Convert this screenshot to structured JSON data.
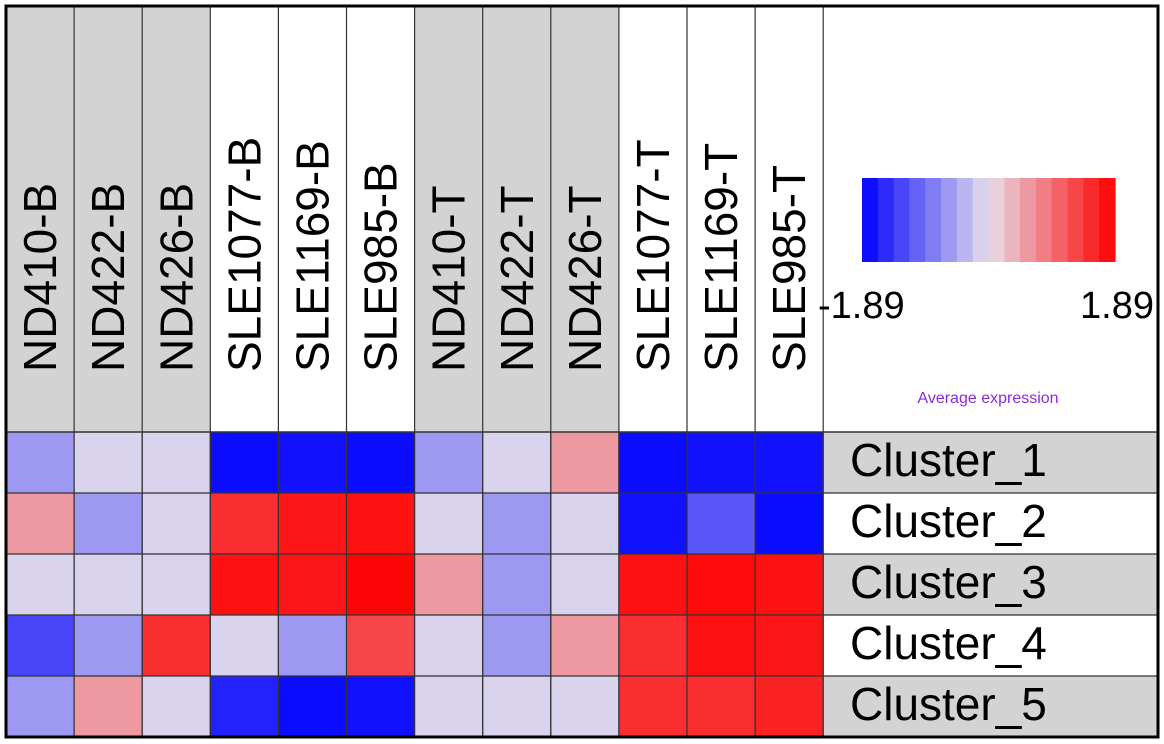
{
  "chart_data": {
    "type": "heatmap",
    "columns": [
      "ND410-B",
      "ND422-B",
      "ND426-B",
      "SLE1077-B",
      "SLE1169-B",
      "SLE985-B",
      "ND410-T",
      "ND422-T",
      "ND426-T",
      "SLE1077-T",
      "SLE1169-T",
      "SLE985-T"
    ],
    "column_groups": [
      "gray",
      "gray",
      "gray",
      "white",
      "white",
      "white",
      "gray",
      "gray",
      "gray",
      "white",
      "white",
      "white"
    ],
    "rows": [
      "Cluster_1",
      "Cluster_2",
      "Cluster_3",
      "Cluster_4",
      "Cluster_5"
    ],
    "row_groups": [
      "gray",
      "white",
      "gray",
      "white",
      "gray"
    ],
    "values": [
      [
        -0.6,
        -0.1,
        -0.1,
        -1.8,
        -1.75,
        -1.8,
        -0.6,
        -0.1,
        0.6,
        -1.8,
        -1.75,
        -1.75
      ],
      [
        0.6,
        -0.6,
        -0.1,
        1.5,
        1.7,
        1.75,
        -0.1,
        -0.6,
        -0.1,
        -1.75,
        -1.15,
        -1.8
      ],
      [
        -0.1,
        -0.1,
        -0.1,
        1.75,
        1.7,
        1.85,
        0.6,
        -0.6,
        -0.1,
        1.75,
        1.8,
        1.75
      ],
      [
        -1.3,
        -0.6,
        1.5,
        -0.1,
        -0.6,
        1.3,
        -0.1,
        -0.6,
        0.6,
        1.5,
        1.75,
        1.7
      ],
      [
        -0.6,
        0.6,
        -0.1,
        -1.6,
        -1.8,
        -1.75,
        -0.1,
        -0.1,
        -0.1,
        1.5,
        1.5,
        1.6
      ]
    ],
    "legend": {
      "min_label": "-1.89",
      "max_label": "1.89",
      "min": -1.89,
      "max": 1.89,
      "title": "Average expression",
      "steps": 16
    },
    "colors": {
      "low": "#0000ff",
      "mid": "#e6dfec",
      "high": "#ff0000",
      "mid_low": "#c7c7ff",
      "mid_high": "#ff8fcf",
      "group_gray": "#d3d3d3",
      "group_white": "#ffffff",
      "legend_title": "#8a2be2"
    }
  }
}
